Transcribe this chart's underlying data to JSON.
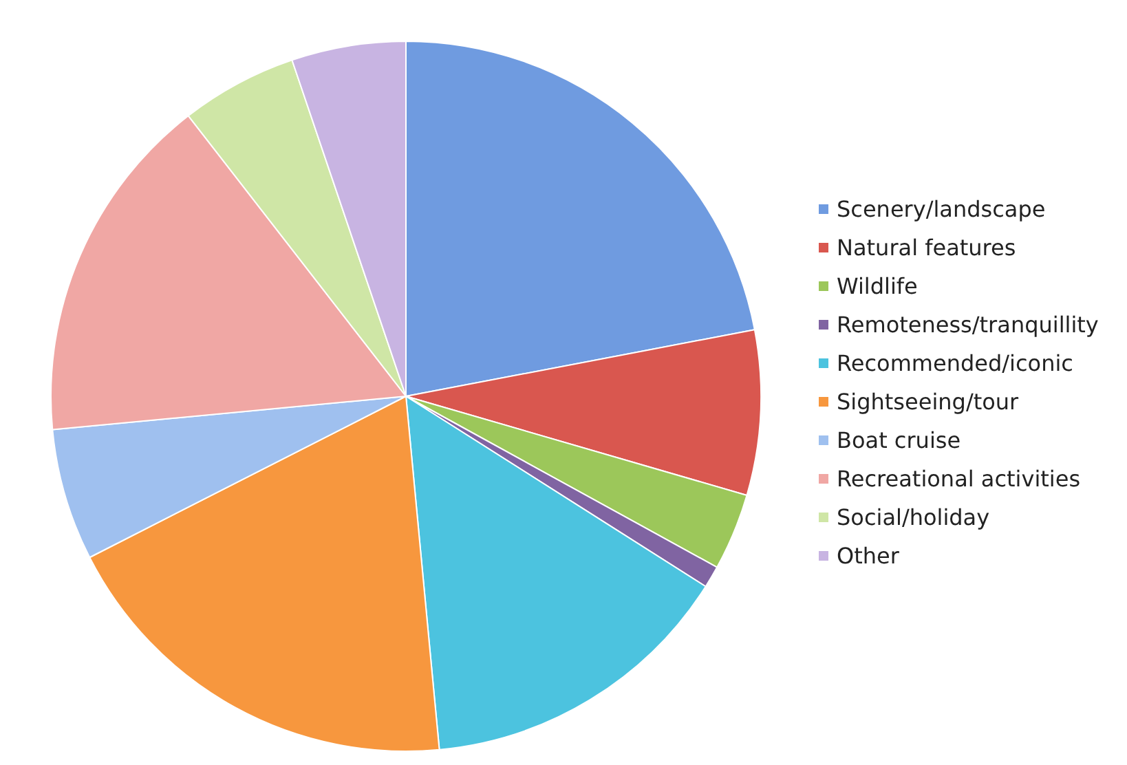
{
  "chart_data": {
    "type": "pie",
    "categories": [
      "Scenery/landscape",
      "Natural features",
      "Wildlife",
      "Remoteness/tranquillity",
      "Recommended/iconic",
      "Sightseeing/tour",
      "Boat cruise",
      "Recreational activities",
      "Social/holiday",
      "Other"
    ],
    "values": [
      22,
      7.5,
      3.5,
      1,
      14.5,
      19,
      6,
      16,
      5.3,
      5.2
    ],
    "colors": [
      "#6f9be0",
      "#d9574f",
      "#9cc75a",
      "#8064a2",
      "#4cc3df",
      "#f7973e",
      "#9fc0ef",
      "#f0a7a4",
      "#cfe6a6",
      "#c8b4e2"
    ],
    "legend": "right"
  }
}
